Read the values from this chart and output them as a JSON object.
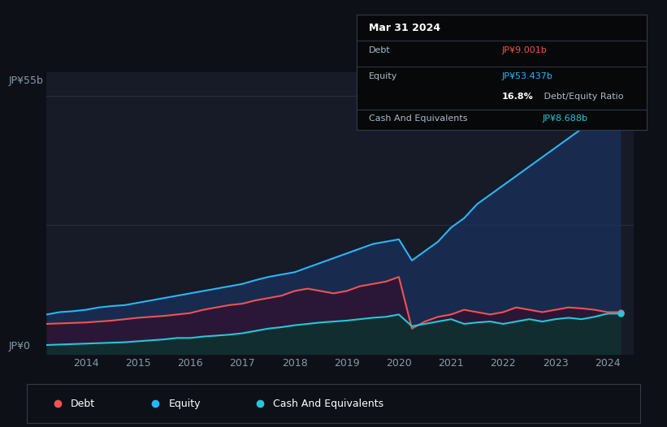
{
  "bg_color": "#0d1117",
  "plot_bg_color": "#161b27",
  "ylabel_top": "JP¥55b",
  "ylabel_bottom": "JP¥0",
  "x_years": [
    2013.25,
    2013.5,
    2013.75,
    2014.0,
    2014.25,
    2014.5,
    2014.75,
    2015.0,
    2015.25,
    2015.5,
    2015.75,
    2016.0,
    2016.25,
    2016.5,
    2016.75,
    2017.0,
    2017.25,
    2017.5,
    2017.75,
    2018.0,
    2018.25,
    2018.5,
    2018.75,
    2019.0,
    2019.25,
    2019.5,
    2019.75,
    2020.0,
    2020.25,
    2020.5,
    2020.75,
    2021.0,
    2021.25,
    2021.5,
    2021.75,
    2022.0,
    2022.25,
    2022.5,
    2022.75,
    2023.0,
    2023.25,
    2023.5,
    2023.75,
    2024.0,
    2024.25
  ],
  "equity": [
    8.5,
    9.0,
    9.2,
    9.5,
    10.0,
    10.3,
    10.5,
    11.0,
    11.5,
    12.0,
    12.5,
    13.0,
    13.5,
    14.0,
    14.5,
    15.0,
    15.8,
    16.5,
    17.0,
    17.5,
    18.5,
    19.5,
    20.5,
    21.5,
    22.5,
    23.5,
    24.0,
    24.5,
    20.0,
    22.0,
    24.0,
    27.0,
    29.0,
    32.0,
    34.0,
    36.0,
    38.0,
    40.0,
    42.0,
    44.0,
    46.0,
    48.0,
    50.0,
    53.4,
    55.0
  ],
  "debt": [
    6.5,
    6.6,
    6.7,
    6.8,
    7.0,
    7.2,
    7.5,
    7.8,
    8.0,
    8.2,
    8.5,
    8.8,
    9.5,
    10.0,
    10.5,
    10.8,
    11.5,
    12.0,
    12.5,
    13.5,
    14.0,
    13.5,
    13.0,
    13.5,
    14.5,
    15.0,
    15.5,
    16.5,
    5.5,
    7.0,
    8.0,
    8.5,
    9.5,
    9.0,
    8.5,
    9.0,
    10.0,
    9.5,
    9.0,
    9.5,
    10.0,
    9.8,
    9.5,
    9.0,
    9.0
  ],
  "cash": [
    2.0,
    2.1,
    2.2,
    2.3,
    2.4,
    2.5,
    2.6,
    2.8,
    3.0,
    3.2,
    3.5,
    3.5,
    3.8,
    4.0,
    4.2,
    4.5,
    5.0,
    5.5,
    5.8,
    6.2,
    6.5,
    6.8,
    7.0,
    7.2,
    7.5,
    7.8,
    8.0,
    8.5,
    6.0,
    6.5,
    7.0,
    7.5,
    6.5,
    6.8,
    7.0,
    6.5,
    7.0,
    7.5,
    7.0,
    7.5,
    7.8,
    7.5,
    8.0,
    8.688,
    8.688
  ],
  "equity_color": "#29b6f6",
  "debt_color": "#ef5350",
  "cash_color": "#26c6da",
  "grid_color": "#2a3040",
  "tick_color": "#8899aa",
  "x_tick_labels": [
    "2014",
    "2015",
    "2016",
    "2017",
    "2018",
    "2019",
    "2020",
    "2021",
    "2022",
    "2023",
    "2024"
  ],
  "x_tick_positions": [
    2014,
    2015,
    2016,
    2017,
    2018,
    2019,
    2020,
    2021,
    2022,
    2023,
    2024
  ],
  "ylim": [
    0,
    60
  ],
  "xlim": [
    2013.25,
    2024.5
  ],
  "tooltip_title": "Mar 31 2024",
  "tooltip_debt_label": "Debt",
  "tooltip_debt_value": "JP¥9.001b",
  "tooltip_equity_label": "Equity",
  "tooltip_equity_value": "JP¥53.437b",
  "tooltip_ratio_bold": "16.8%",
  "tooltip_ratio_rest": " Debt/Equity Ratio",
  "tooltip_cash_label": "Cash And Equivalents",
  "tooltip_cash_value": "JP¥8.688b",
  "legend_items": [
    {
      "label": "Debt",
      "color": "#ef5350"
    },
    {
      "label": "Equity",
      "color": "#29b6f6"
    },
    {
      "label": "Cash And Equivalents",
      "color": "#26c6da"
    }
  ]
}
